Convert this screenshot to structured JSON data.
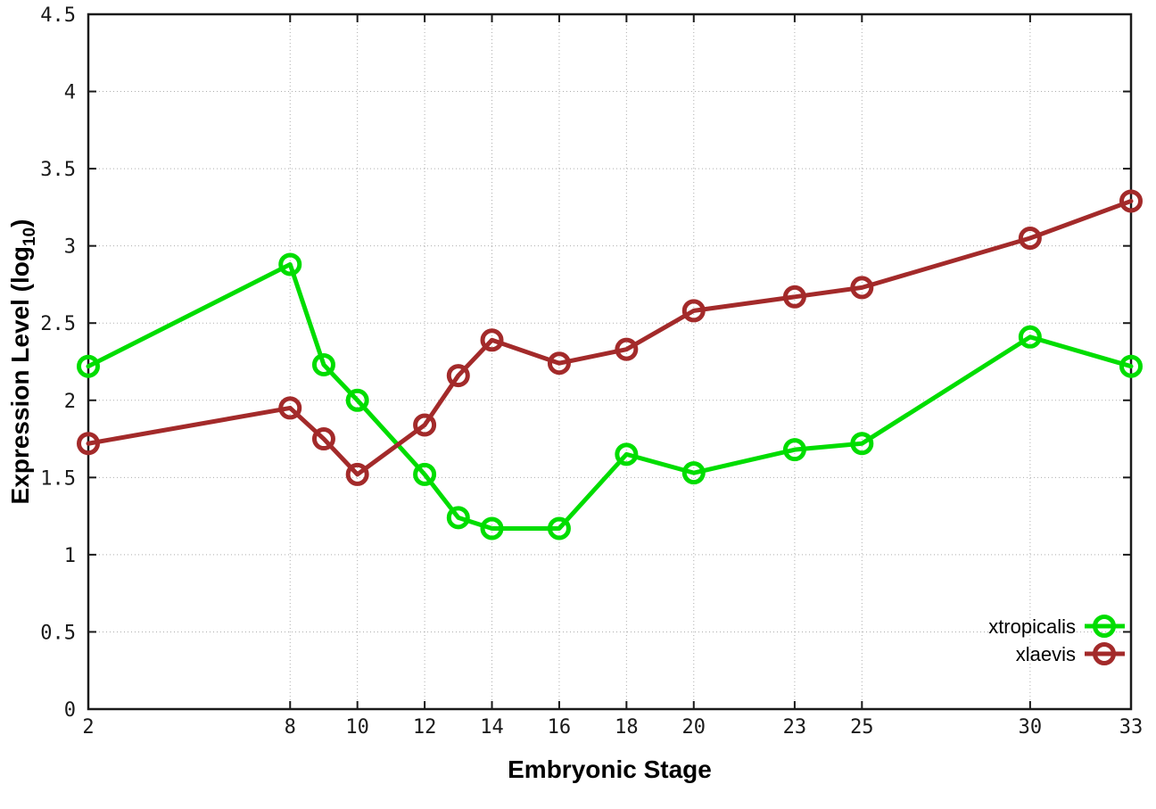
{
  "chart_data": {
    "type": "line",
    "title": "",
    "xlabel": "Embryonic Stage",
    "ylabel": "Expression Level (log10)",
    "ylabel_parts": {
      "pre": "Expression Level (log",
      "sub": "10",
      "post": ")"
    },
    "xlim": [
      2,
      33
    ],
    "ylim": [
      0,
      4.5
    ],
    "grid": true,
    "legend_position": "inside-bottom-right",
    "x_ticks": [
      2,
      8,
      10,
      12,
      14,
      16,
      18,
      20,
      23,
      25,
      30,
      33
    ],
    "x_tick_labels": [
      "2",
      "8",
      "10",
      "12",
      "14",
      "16",
      "18",
      "20",
      "23",
      "25",
      "30",
      "33"
    ],
    "y_ticks": [
      0,
      0.5,
      1,
      1.5,
      2,
      2.5,
      3,
      3.5,
      4,
      4.5
    ],
    "y_tick_labels": [
      "0",
      "0.5",
      "1",
      "1.5",
      "2",
      "2.5",
      "3",
      "3.5",
      "4",
      "4.5"
    ],
    "x": [
      2,
      8,
      9,
      10,
      12,
      13,
      14,
      16,
      18,
      20,
      23,
      25,
      30,
      33
    ],
    "series": [
      {
        "name": "xtropicalis",
        "color": "#00dd00",
        "values": [
          2.22,
          2.88,
          2.23,
          2.0,
          1.52,
          1.24,
          1.17,
          1.17,
          1.65,
          1.53,
          1.68,
          1.72,
          2.41,
          2.22
        ]
      },
      {
        "name": "xlaevis",
        "color": "#a32a2a",
        "values": [
          1.72,
          1.95,
          1.75,
          1.52,
          1.84,
          2.16,
          2.39,
          2.24,
          2.33,
          2.58,
          2.67,
          2.73,
          3.05,
          3.29
        ]
      }
    ],
    "colors": {
      "axis": "#1a1a1a",
      "grid": "#999999",
      "tick_text": "#1a1a1a"
    }
  }
}
